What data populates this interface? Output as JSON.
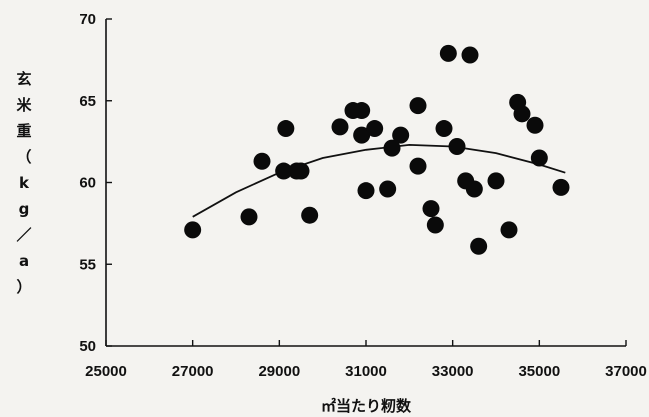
{
  "chart_data": {
    "type": "scatter",
    "xlabel": "㎡当たり籾数",
    "ylabel_chars": [
      "玄",
      "米",
      "重",
      "（",
      "k",
      "g",
      "／",
      "a",
      "）"
    ],
    "xlim": [
      25000,
      37000
    ],
    "ylim": [
      50,
      70
    ],
    "xticks": [
      25000,
      27000,
      29000,
      31000,
      33000,
      35000,
      37000
    ],
    "yticks": [
      50,
      55,
      60,
      65,
      70
    ],
    "grid": false,
    "legend": "none",
    "marker_color": "#0a0a0a",
    "points": [
      {
        "x": 27000,
        "y": 57.1
      },
      {
        "x": 28300,
        "y": 57.9
      },
      {
        "x": 28600,
        "y": 61.3
      },
      {
        "x": 29100,
        "y": 60.7
      },
      {
        "x": 29150,
        "y": 63.3
      },
      {
        "x": 29400,
        "y": 60.7
      },
      {
        "x": 29500,
        "y": 60.7
      },
      {
        "x": 29700,
        "y": 58.0
      },
      {
        "x": 30400,
        "y": 63.4
      },
      {
        "x": 30700,
        "y": 64.4
      },
      {
        "x": 30900,
        "y": 64.4
      },
      {
        "x": 30900,
        "y": 62.9
      },
      {
        "x": 31000,
        "y": 59.5
      },
      {
        "x": 31200,
        "y": 63.3
      },
      {
        "x": 31500,
        "y": 59.6
      },
      {
        "x": 31600,
        "y": 62.1
      },
      {
        "x": 31800,
        "y": 62.9
      },
      {
        "x": 32200,
        "y": 64.7
      },
      {
        "x": 32500,
        "y": 58.4
      },
      {
        "x": 32600,
        "y": 57.4
      },
      {
        "x": 32800,
        "y": 63.3
      },
      {
        "x": 32900,
        "y": 67.9
      },
      {
        "x": 33100,
        "y": 62.2
      },
      {
        "x": 33300,
        "y": 60.1
      },
      {
        "x": 33400,
        "y": 67.8
      },
      {
        "x": 33500,
        "y": 59.6
      },
      {
        "x": 33600,
        "y": 56.1
      },
      {
        "x": 34000,
        "y": 60.1
      },
      {
        "x": 34300,
        "y": 57.1
      },
      {
        "x": 34500,
        "y": 64.9
      },
      {
        "x": 34600,
        "y": 64.2
      },
      {
        "x": 34900,
        "y": 63.5
      },
      {
        "x": 35000,
        "y": 61.5
      },
      {
        "x": 35500,
        "y": 59.7
      },
      {
        "x": 32200,
        "y": 61.0
      }
    ],
    "trendline": {
      "type": "quadratic",
      "x": [
        27000,
        28000,
        29000,
        30000,
        31000,
        32000,
        33000,
        34000,
        35000,
        35600
      ],
      "y": [
        57.9,
        59.4,
        60.6,
        61.5,
        62.0,
        62.3,
        62.2,
        61.8,
        61.1,
        60.6
      ]
    }
  }
}
